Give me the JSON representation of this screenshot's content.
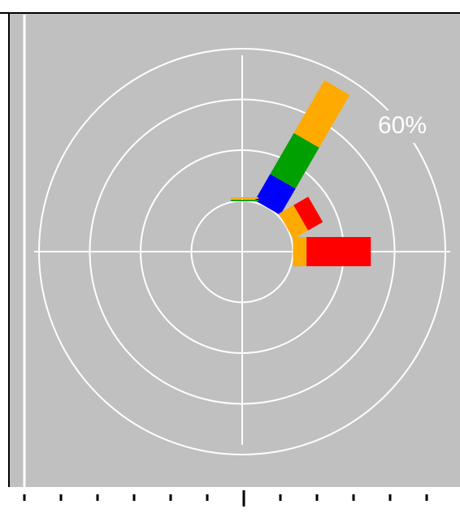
{
  "chart_data": {
    "type": "windrose",
    "rlim": [
      0,
      60
    ],
    "rticks": [
      15,
      30,
      45,
      {
        "value": 60,
        "label": "60%"
      }
    ],
    "bar_base": 15,
    "bars": [
      {
        "direction": 30,
        "segments": [
          {
            "color": "#0000ff",
            "value": 9
          },
          {
            "color": "#00a000",
            "value": 14
          },
          {
            "color": "#ffaa00",
            "value": 18
          }
        ]
      },
      {
        "direction": 60,
        "segments": [
          {
            "color": "#ffaa00",
            "value": 5
          },
          {
            "color": "#ff0000",
            "value": 5
          }
        ]
      },
      {
        "direction": 90,
        "segments": [
          {
            "color": "#ffaa00",
            "value": 4
          },
          {
            "color": "#ff0000",
            "value": 19
          }
        ]
      }
    ]
  }
}
